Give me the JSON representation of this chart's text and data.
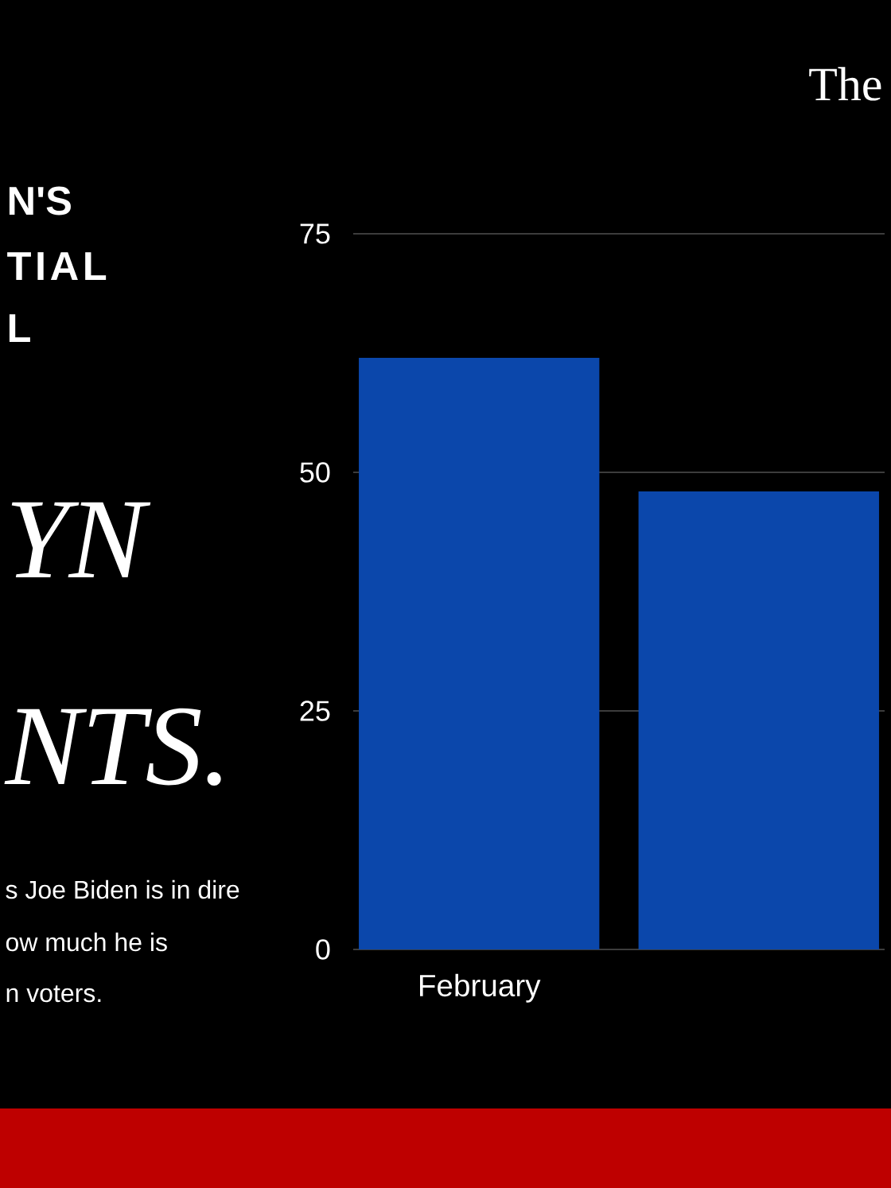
{
  "chart_data": {
    "type": "bar",
    "title": "The",
    "categories": [
      "February",
      null
    ],
    "values": [
      62,
      48
    ],
    "color": "#0b47ab",
    "ylim": [
      0,
      75
    ],
    "yticks": [
      0,
      25,
      50,
      75
    ],
    "grid": "y",
    "annotations": [
      "N'S",
      "TIAL",
      "L",
      "YN",
      "NTS.",
      "s Joe Biden is in dire",
      "ow much he is",
      "n voters."
    ]
  }
}
